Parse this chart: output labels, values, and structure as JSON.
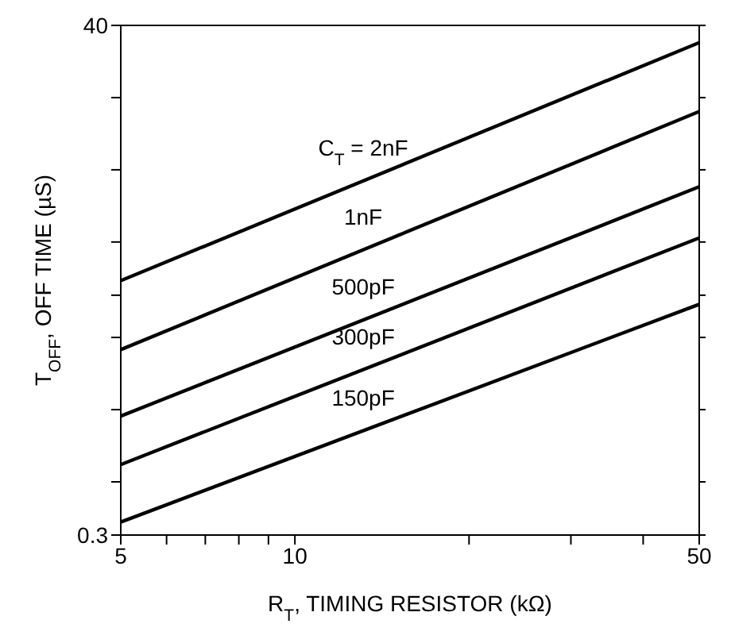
{
  "chart_data": {
    "type": "line",
    "xlabel": "R$_{T}$, TIMING RESISTOR (kΩ)",
    "ylabel": "T$_{OFF}$, OFF TIME (µS)",
    "log": "xy",
    "xlim": [
      5,
      50
    ],
    "ylim": [
      0.3,
      40
    ],
    "xticks": [
      5,
      {
        "value": 6,
        "label": null
      },
      {
        "value": 7,
        "label": null
      },
      {
        "value": 8,
        "label": null
      },
      {
        "value": 9,
        "label": null
      },
      10,
      {
        "value": 20,
        "label": null
      },
      {
        "value": 30,
        "label": null
      },
      {
        "value": 40,
        "label": null
      },
      50
    ],
    "yticks": [
      0.3,
      {
        "value": 0.5,
        "label": null
      },
      {
        "value": 1,
        "label": null
      },
      {
        "value": 2,
        "label": null
      },
      {
        "value": 3,
        "label": null
      },
      {
        "value": 5,
        "label": null
      },
      {
        "value": 10,
        "label": null
      },
      {
        "value": 20,
        "label": null
      },
      40
    ],
    "marker": "none",
    "line_style": "solid",
    "x": [
      5,
      50
    ],
    "series": [
      {
        "name": "C$_{T}$ = 2nF",
        "color": "#000000",
        "values": [
          3.45,
          33.9
        ]
      },
      {
        "name": "1nF",
        "color": "#000000",
        "values": [
          1.78,
          17.5
        ]
      },
      {
        "name": "500pF",
        "color": "#000000",
        "values": [
          0.94,
          8.5
        ]
      },
      {
        "name": "300pF",
        "color": "#000000",
        "values": [
          0.59,
          5.2
        ]
      },
      {
        "name": "150pF",
        "color": "#000000",
        "values": [
          0.34,
          2.75
        ]
      }
    ]
  }
}
